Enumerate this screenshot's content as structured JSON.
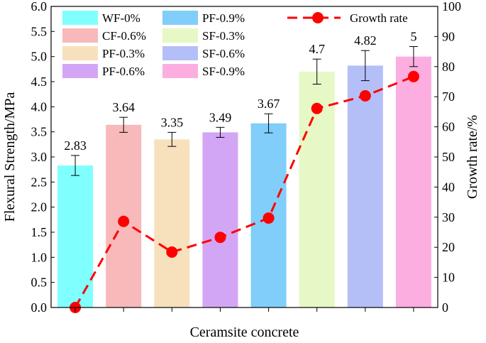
{
  "chart_data": {
    "type": "bar",
    "categories": [
      "WF-0%",
      "CF-0.6%",
      "PF-0.3%",
      "PF-0.6%",
      "PF-0.9%",
      "SF-0.3%",
      "SF-0.6%",
      "SF-0.9%"
    ],
    "xlabel": "Ceramsite concrete",
    "ylabel": "Flexural Strength/MPa",
    "ylabel_right": "Growth rate/%",
    "ylim": [
      0,
      6
    ],
    "ylim_right": [
      0,
      100
    ],
    "yticks": [
      "0.0",
      "0.5",
      "1.0",
      "1.5",
      "2.0",
      "2.5",
      "3.0",
      "3.5",
      "4.0",
      "4.5",
      "5.0",
      "5.5",
      "6.0"
    ],
    "yticks_right": [
      "0",
      "10",
      "20",
      "30",
      "40",
      "50",
      "60",
      "70",
      "80",
      "90",
      "100"
    ],
    "series": [
      {
        "name": "Flexural strength",
        "type": "bar",
        "values": [
          2.83,
          3.64,
          3.35,
          3.49,
          3.67,
          4.7,
          4.82,
          5
        ],
        "labels": [
          "2.83",
          "3.64",
          "3.35",
          "3.49",
          "3.67",
          "4.7",
          "4.82",
          "5"
        ],
        "errors": [
          0.2,
          0.15,
          0.14,
          0.1,
          0.19,
          0.25,
          0.3,
          0.2
        ],
        "colors": [
          "#80ffff",
          "#f7b9b9",
          "#f7e1bd",
          "#d3a6f5",
          "#80cef9",
          "#e6f8c5",
          "#b5bff7",
          "#fcaee0"
        ]
      },
      {
        "name": "Growth rate",
        "type": "line",
        "axis": "right",
        "values": [
          0,
          28.6,
          18.4,
          23.3,
          29.7,
          66.1,
          70.3,
          76.7
        ],
        "color": "#ff0000"
      }
    ],
    "legend": {
      "placement": "top",
      "bar_entries": [
        "WF-0%",
        "CF-0.6%",
        "PF-0.3%",
        "PF-0.6%",
        "PF-0.9%",
        "SF-0.3%",
        "SF-0.6%",
        "SF-0.9%"
      ],
      "line_entry": "Growth rate"
    }
  }
}
